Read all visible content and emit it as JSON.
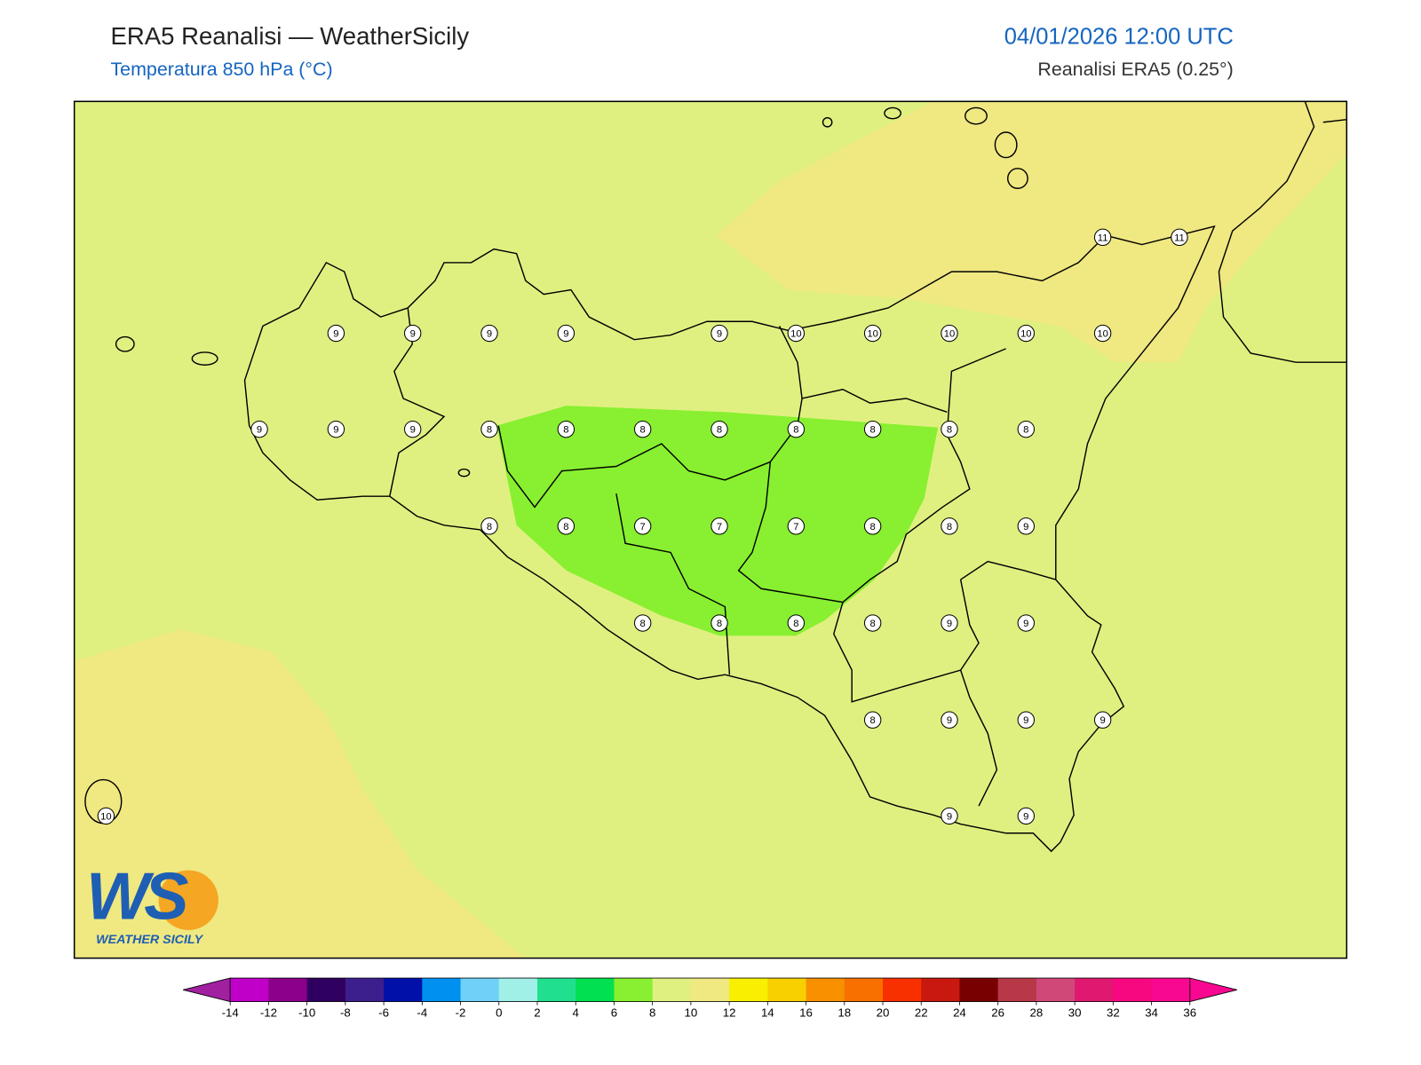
{
  "header": {
    "title": "ERA5 Reanalisi — WeatherSicily",
    "subtitle": "Temperatura 850 hPa (°C)",
    "datetime": "04/01/2026 12:00 UTC",
    "source": "Reanalisi ERA5 (0.25°)"
  },
  "stations": {
    "rows": [
      [
        null,
        null,
        null,
        null,
        null,
        null,
        null,
        null,
        null,
        null,
        null,
        null,
        null,
        11,
        11
      ],
      [
        null,
        null,
        null,
        9,
        9,
        9,
        9,
        null,
        9,
        10,
        10,
        10,
        10,
        10,
        null
      ],
      [
        null,
        null,
        9,
        9,
        9,
        8,
        8,
        8,
        8,
        8,
        8,
        8,
        8,
        null,
        null
      ],
      [
        null,
        null,
        null,
        null,
        null,
        8,
        8,
        7,
        7,
        7,
        8,
        8,
        9,
        null,
        null
      ],
      [
        null,
        null,
        null,
        null,
        null,
        null,
        null,
        8,
        8,
        8,
        8,
        9,
        9,
        null,
        null
      ],
      [
        null,
        null,
        null,
        null,
        null,
        null,
        null,
        null,
        null,
        null,
        8,
        9,
        9,
        9,
        null
      ],
      [
        10,
        null,
        null,
        null,
        null,
        null,
        null,
        null,
        null,
        null,
        null,
        9,
        9,
        null,
        null
      ]
    ]
  },
  "colorbar": {
    "ticks": [
      -14,
      -12,
      -10,
      -8,
      -6,
      -4,
      -2,
      0,
      2,
      4,
      6,
      8,
      10,
      12,
      14,
      16,
      18,
      20,
      22,
      24,
      26,
      28,
      30,
      32,
      34,
      36
    ],
    "colors": [
      "#c000c8",
      "#8a008a",
      "#300060",
      "#3c1e8c",
      "#0010a8",
      "#0090f0",
      "#70d0f8",
      "#a0f0e8",
      "#20e090",
      "#00e050",
      "#88f030",
      "#e0f080",
      "#f0e880",
      "#f8f000",
      "#f8d000",
      "#f89000",
      "#f87000",
      "#f83000",
      "#c81810",
      "#780000",
      "#b83848",
      "#d04878",
      "#e01870",
      "#f80880",
      "#f80890"
    ],
    "under_color": "#a020a0",
    "over_color": "#f80890"
  },
  "logo": {
    "mark": "WS",
    "name": "WEATHER SICILY"
  }
}
